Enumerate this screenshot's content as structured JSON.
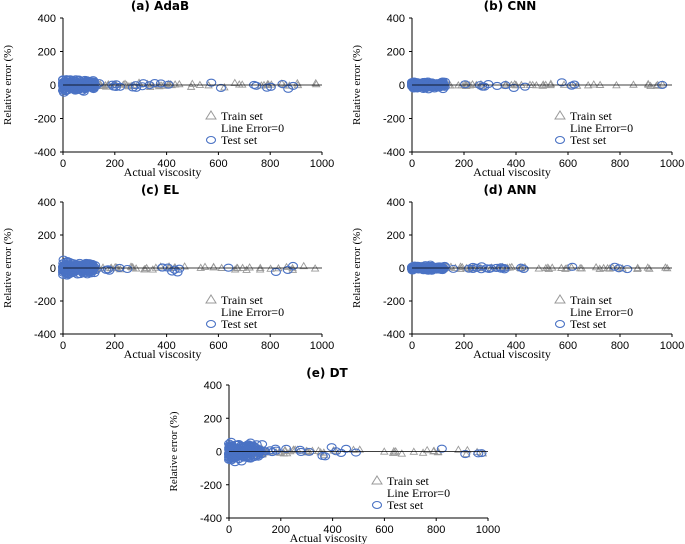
{
  "chart_data": [
    {
      "type": "scatter",
      "title": "(a) AdaB",
      "xlabel": "Actual viscosity",
      "ylabel": "Relative error (%)",
      "xlim": [
        0,
        1000
      ],
      "ylim": [
        -400,
        400
      ],
      "x_ticks": [
        "0",
        "200",
        "400",
        "600",
        "800",
        "1000"
      ],
      "y_ticks": [
        "400",
        "200",
        "0",
        "-200",
        "-400"
      ],
      "legend": [
        "Train set",
        "Line Error=0",
        "Test set"
      ],
      "spread": {
        "train_max_abs_error": 25,
        "test_max_abs_error": 55
      }
    },
    {
      "type": "scatter",
      "title": "(b) CNN",
      "xlabel": "Actual viscosity",
      "ylabel": "Relative error (%)",
      "xlim": [
        0,
        1000
      ],
      "ylim": [
        -400,
        400
      ],
      "x_ticks": [
        "0",
        "200",
        "400",
        "600",
        "800",
        "1000"
      ],
      "y_ticks": [
        "400",
        "200",
        "0",
        "-200",
        "-400"
      ],
      "legend": [
        "Train set",
        "Line Error=0",
        "Test set"
      ],
      "spread": {
        "train_max_abs_error": 15,
        "test_max_abs_error": 35
      }
    },
    {
      "type": "scatter",
      "title": "(c) EL",
      "xlabel": "Actual viscosity",
      "ylabel": "Relative error (%)",
      "xlim": [
        0,
        1000
      ],
      "ylim": [
        -400,
        400
      ],
      "x_ticks": [
        "0",
        "200",
        "400",
        "600",
        "800",
        "1000"
      ],
      "y_ticks": [
        "400",
        "200",
        "0",
        "-200",
        "-400"
      ],
      "legend": [
        "Train set",
        "Line Error=0",
        "Test set"
      ],
      "spread": {
        "train_max_abs_error": 30,
        "test_max_abs_error": 60
      }
    },
    {
      "type": "scatter",
      "title": "(d) ANN",
      "xlabel": "Actual viscosity",
      "ylabel": "Relative error (%)",
      "xlim": [
        0,
        1000
      ],
      "ylim": [
        -400,
        400
      ],
      "x_ticks": [
        "0",
        "200",
        "400",
        "600",
        "800",
        "1000"
      ],
      "y_ticks": [
        "400",
        "200",
        "0",
        "-200",
        "-400"
      ],
      "legend": [
        "Train set",
        "Line Error=0",
        "Test set"
      ],
      "spread": {
        "train_max_abs_error": 15,
        "test_max_abs_error": 25
      }
    },
    {
      "type": "scatter",
      "title": "(e) DT",
      "xlabel": "Actual viscosity",
      "ylabel": "Relative error (%)",
      "xlim": [
        0,
        1000
      ],
      "ylim": [
        -400,
        400
      ],
      "x_ticks": [
        "0",
        "200",
        "400",
        "600",
        "800",
        "1000"
      ],
      "y_ticks": [
        "400",
        "200",
        "0",
        "-200",
        "-400"
      ],
      "legend": [
        "Train set",
        "Line Error=0",
        "Test set"
      ],
      "spread": {
        "train_max_abs_error": 35,
        "test_max_abs_error": 90
      }
    }
  ],
  "colors": {
    "train": "#9a9a9a",
    "test": "#4a72c4",
    "zero_line": "#000000"
  }
}
